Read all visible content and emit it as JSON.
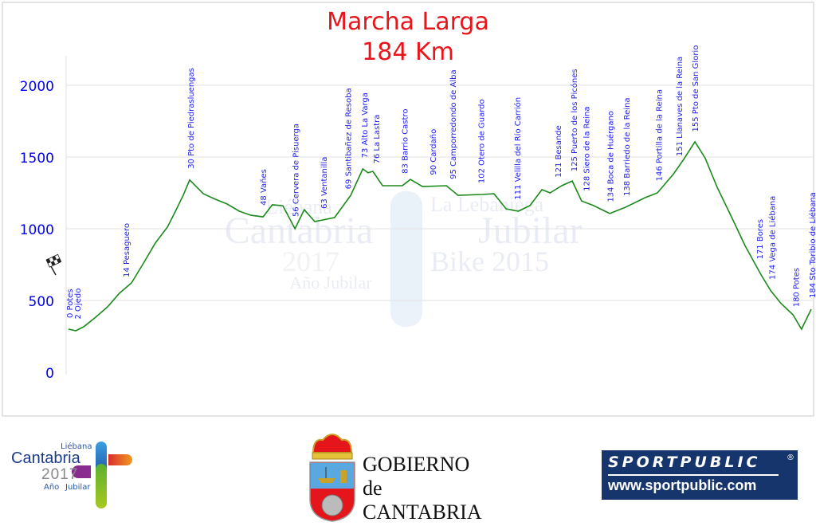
{
  "chart_data": {
    "type": "line",
    "title": "Marcha Larga",
    "subtitle": "184 Km",
    "xlabel": "",
    "ylabel": "",
    "xlim": [
      0,
      184
    ],
    "ylim": [
      0,
      2000
    ],
    "yticks": [
      0,
      500,
      1000,
      1500,
      2000
    ],
    "grid": true,
    "line_color": "#1a8a1a",
    "tick_color": "#0000ee",
    "label_color": "#2222ee",
    "profile": [
      [
        0,
        300
      ],
      [
        1.8,
        289
      ],
      [
        3.8,
        317
      ],
      [
        6.7,
        383
      ],
      [
        9.7,
        456
      ],
      [
        12.6,
        550
      ],
      [
        15.6,
        622
      ],
      [
        18.6,
        761
      ],
      [
        21.5,
        900
      ],
      [
        24.5,
        1011
      ],
      [
        26.5,
        1122
      ],
      [
        28.4,
        1233
      ],
      [
        30,
        1340
      ],
      [
        33.4,
        1244
      ],
      [
        36.3,
        1206
      ],
      [
        39.3,
        1172
      ],
      [
        42.3,
        1122
      ],
      [
        45.2,
        1094
      ],
      [
        48.2,
        1083
      ],
      [
        50.5,
        1167
      ],
      [
        53.1,
        1160
      ],
      [
        56.1,
        1000
      ],
      [
        58.4,
        1133
      ],
      [
        61,
        1050
      ],
      [
        65.9,
        1078
      ],
      [
        69.9,
        1233
      ],
      [
        72.9,
        1417
      ],
      [
        74.2,
        1390
      ],
      [
        75.4,
        1400
      ],
      [
        77.8,
        1300
      ],
      [
        82.7,
        1300
      ],
      [
        84.7,
        1344
      ],
      [
        87.7,
        1294
      ],
      [
        93.6,
        1300
      ],
      [
        96.5,
        1233
      ],
      [
        102.5,
        1239
      ],
      [
        105.4,
        1244
      ],
      [
        108.4,
        1139
      ],
      [
        111.4,
        1122
      ],
      [
        114.3,
        1161
      ],
      [
        117.3,
        1272
      ],
      [
        119.3,
        1250
      ],
      [
        122.2,
        1300
      ],
      [
        124.8,
        1333
      ],
      [
        127.1,
        1194
      ],
      [
        130.1,
        1161
      ],
      [
        134.1,
        1106
      ],
      [
        138,
        1150
      ],
      [
        142.9,
        1217
      ],
      [
        145.9,
        1250
      ],
      [
        149.9,
        1383
      ],
      [
        152.4,
        1483
      ],
      [
        155.2,
        1606
      ],
      [
        157.7,
        1494
      ],
      [
        160.7,
        1289
      ],
      [
        164.7,
        1056
      ],
      [
        167.6,
        883
      ],
      [
        171.6,
        678
      ],
      [
        174,
        567
      ],
      [
        176.5,
        480
      ],
      [
        179.5,
        400
      ],
      [
        181.6,
        300
      ],
      [
        184,
        439
      ]
    ],
    "waypoints": [
      {
        "km": 0,
        "label": "0  Potes"
      },
      {
        "km": 2,
        "label": "2  Ojedo"
      },
      {
        "km": 14,
        "label": "14  Pesaguero"
      },
      {
        "km": 30,
        "label": "30  Pto de Piedrasluengas"
      },
      {
        "km": 48,
        "label": "48  Vañes"
      },
      {
        "km": 56,
        "label": "56  Cervera de Pisuerga"
      },
      {
        "km": 63,
        "label": "63  Ventanilla"
      },
      {
        "km": 69,
        "label": "69  Santibañez de Resoba"
      },
      {
        "km": 73,
        "label": "73  Alto La Varga"
      },
      {
        "km": 76,
        "label": "76  La Lastra"
      },
      {
        "km": 83,
        "label": "83  Barrio Castro"
      },
      {
        "km": 90,
        "label": "90  Cardaño"
      },
      {
        "km": 95,
        "label": "95  Camporredondo de Alba"
      },
      {
        "km": 102,
        "label": "102  Otero de Guardo"
      },
      {
        "km": 111,
        "label": "111  Velilla del Río Carrión"
      },
      {
        "km": 121,
        "label": "121  Besande"
      },
      {
        "km": 125,
        "label": "125  Puerto de los Picónes"
      },
      {
        "km": 128,
        "label": "128  Siero de la Reina"
      },
      {
        "km": 134,
        "label": "134  Boca de Huérgano"
      },
      {
        "km": 138,
        "label": "138  Barriedo de la Reina"
      },
      {
        "km": 146,
        "label": "146  Portilla de la Reina"
      },
      {
        "km": 151,
        "label": "151  Llanaves de la Reina"
      },
      {
        "km": 155,
        "label": "155  Pto de San Glorio"
      },
      {
        "km": 171,
        "label": "171  Bores"
      },
      {
        "km": 174,
        "label": "174  Vega de Liébana"
      },
      {
        "km": 180,
        "label": "180  Potes"
      },
      {
        "km": 184,
        "label": "184  Sto Toribio de Liébana"
      }
    ],
    "start_icon": "checkered-flag-icon"
  },
  "watermark": {
    "left": [
      "Liébana",
      "Cantabria",
      "2017",
      "Año Jubilar"
    ],
    "right": [
      "La Lebaniega",
      "Jubilar",
      "Bike 2015"
    ]
  },
  "logos": {
    "cantabria2017": {
      "top": "Liébana",
      "main": "Cantabria",
      "year": "2017",
      "sub_left": "Año",
      "sub_right": "Jubilar"
    },
    "gobierno": {
      "line1": "GOBIERNO",
      "line2": "de",
      "line3": "CANTABRIA"
    },
    "sportpublic": {
      "brand": "SPORTPUBLIC",
      "reg": "®",
      "url": "www.sportpublic.com",
      "bg": "#17356d"
    }
  }
}
